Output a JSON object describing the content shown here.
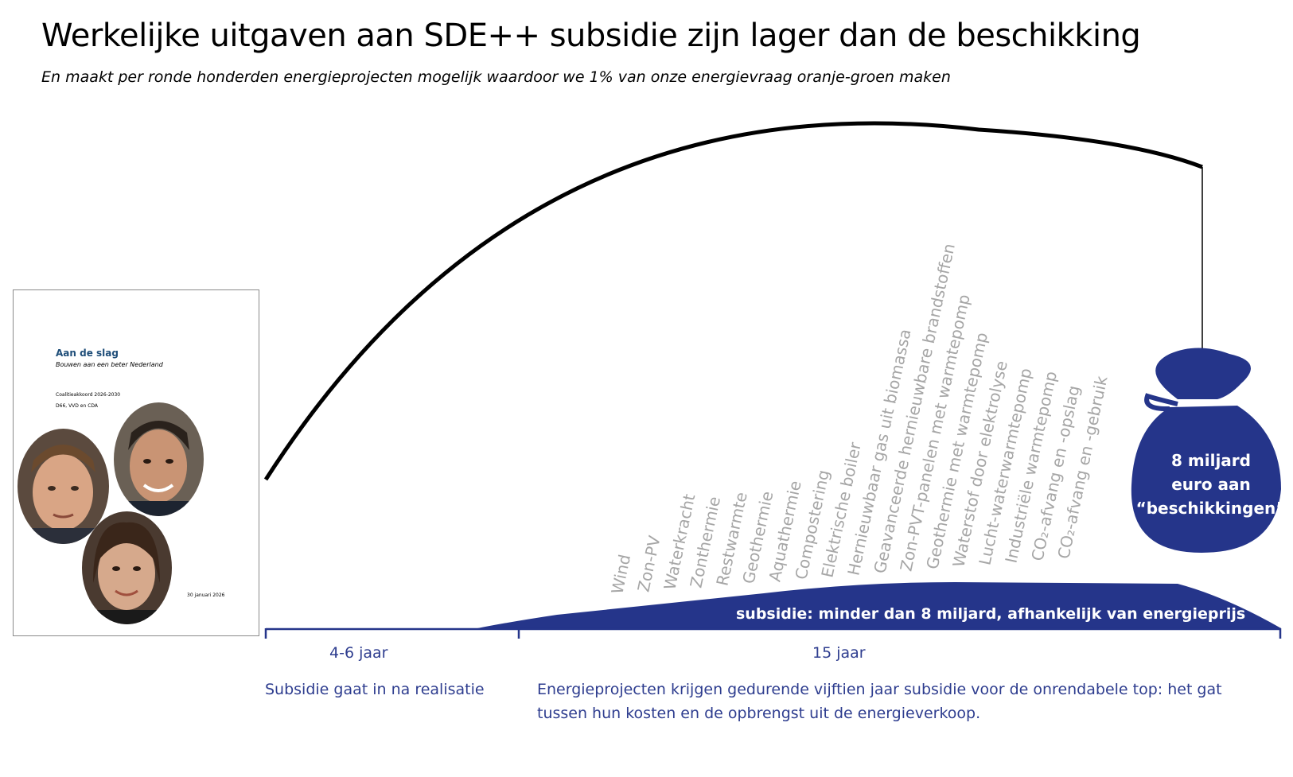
{
  "title": "Werkelijke uitgaven aan SDE++ subsidie zijn lager dan de beschikking",
  "subtitle": "En maakt per ronde honderden energieprojecten mogelijk waardoor we 1% van onze energievraag oranje-groen maken",
  "report": {
    "title": "Aan de slag",
    "subtitle": "Bouwen aan een beter Nederland",
    "line1": "Coalitieakkoord 2026-2030",
    "line2": "D66, VVD en CDA",
    "date": "30 januari 2026"
  },
  "categories": [
    "Wind",
    "Zon-PV",
    "Waterkracht",
    "Zonthermie",
    "Restwarmte",
    "Geothermie",
    "Aquathermie",
    "Compostering",
    "Elektrische boiler",
    "Hernieuwbaar gas uit biomassa",
    "Geavanceerde hernieuwbare brandstoffen",
    "Zon-PVT-panelen met warmtepomp",
    "Geothermie met warmtepomp",
    "Waterstof door elektrolyse",
    "Lucht-waterwarmtepomp",
    "Industriële warmtepomp",
    "CO₂-afvang en -opslag",
    "CO₂-afvang en -gebruik"
  ],
  "bag": {
    "line1": "8 miljard",
    "line2": "euro aan",
    "line3": "“beschikkingen”"
  },
  "subsidy_label": "subsidie: minder dan 8 miljard, afhankelijk van energieprijs",
  "timeline": {
    "period1": "4-6 jaar",
    "period2": "15 jaar",
    "desc1": "Subsidie gaat in na realisatie",
    "desc2": "Energieprojecten krijgen gedurende vijftien jaar subsidie voor de onrendabele top: het gat tussen hun kosten en de opbrengst uit de energieverkoop."
  },
  "colors": {
    "accent": "#25358a",
    "category_text": "#a6a6a6",
    "curve": "#000000"
  }
}
